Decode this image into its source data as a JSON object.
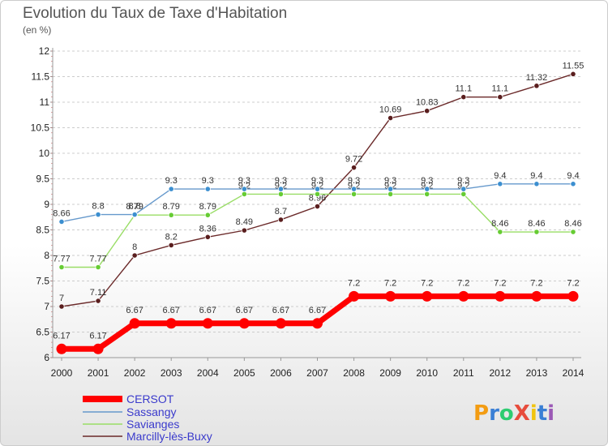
{
  "title": "Evolution du Taux de Taxe d'Habitation",
  "unit": "(en %)",
  "logo": {
    "text": "ProXiti",
    "colors": [
      "#f39c12",
      "#3a7fd5",
      "#2ecc71",
      "#e74c3c",
      "#f1c40f",
      "#3a7fd5",
      "#9b59b6"
    ]
  },
  "chart_data": {
    "type": "line",
    "title": "Evolution du Taux de Taxe d'Habitation",
    "ylabel": "(en %)",
    "xlabel": "",
    "x": [
      "2000",
      "2001",
      "2002",
      "2003",
      "2004",
      "2005",
      "2006",
      "2007",
      "2008",
      "2009",
      "2010",
      "2011",
      "2012",
      "2013",
      "2014"
    ],
    "ylim": [
      6,
      12
    ],
    "yticks": [
      "6",
      "6.5",
      "7",
      "7.5",
      "8",
      "8.5",
      "9",
      "9.5",
      "10",
      "10.5",
      "11",
      "11.5",
      "12"
    ],
    "grid": "horizontal-dashed",
    "legend": "bottom-left",
    "series": [
      {
        "name": "CERSOT",
        "color": "#ff0000",
        "bold": true,
        "values": [
          6.17,
          6.17,
          6.67,
          6.67,
          6.67,
          6.67,
          6.67,
          6.67,
          7.2,
          7.2,
          7.2,
          7.2,
          7.2,
          7.2,
          7.2
        ],
        "labels": [
          "6.17",
          "6.17",
          "6.67",
          "6.67",
          "6.67",
          "6.67",
          "6.67",
          "6.67",
          "7.2",
          "7.2",
          "7.2",
          "7.2",
          "7.2",
          "7.2",
          "7.2"
        ]
      },
      {
        "name": "Sassangy",
        "color": "#6699cc",
        "marker": "#3c8fd0",
        "values": [
          8.66,
          8.8,
          8.8,
          9.3,
          9.3,
          9.3,
          9.3,
          9.3,
          9.3,
          9.3,
          9.3,
          9.3,
          9.4,
          9.4,
          9.4
        ],
        "labels": [
          "8.66",
          "8.8",
          "8.8",
          "9.3",
          "9.3",
          "9.3",
          "9.3",
          "9.3",
          "9.3",
          "9.3",
          "9.3",
          "9.3",
          "9.4",
          "9.4",
          "9.4"
        ]
      },
      {
        "name": "Savianges",
        "color": "#99dd66",
        "marker": "#66cc33",
        "values": [
          7.77,
          7.77,
          8.79,
          8.79,
          8.79,
          9.2,
          9.2,
          9.2,
          9.2,
          9.2,
          9.2,
          9.2,
          8.46,
          8.46,
          8.46
        ],
        "labels": [
          "7.77",
          "7.77",
          "8.79",
          "8.79",
          "8.79",
          "9.2",
          "9.2",
          "9.2",
          "9.2",
          "9.2",
          "9.2",
          "9.2",
          "8.46",
          "8.46",
          "8.46"
        ]
      },
      {
        "name": "Marcilly-lès-Buxy",
        "color": "#6b2a2a",
        "marker": "#5a1e1e",
        "values": [
          7,
          7.11,
          8,
          8.2,
          8.36,
          8.49,
          8.7,
          8.96,
          9.72,
          10.69,
          10.83,
          11.1,
          11.1,
          11.32,
          11.55
        ],
        "labels": [
          "7",
          "7.11",
          "8",
          "8.2",
          "8.36",
          "8.49",
          "8.7",
          "8.96",
          "9.72",
          "10.69",
          "10.83",
          "11.1",
          "11.1",
          "11.32",
          "11.55"
        ]
      }
    ]
  }
}
